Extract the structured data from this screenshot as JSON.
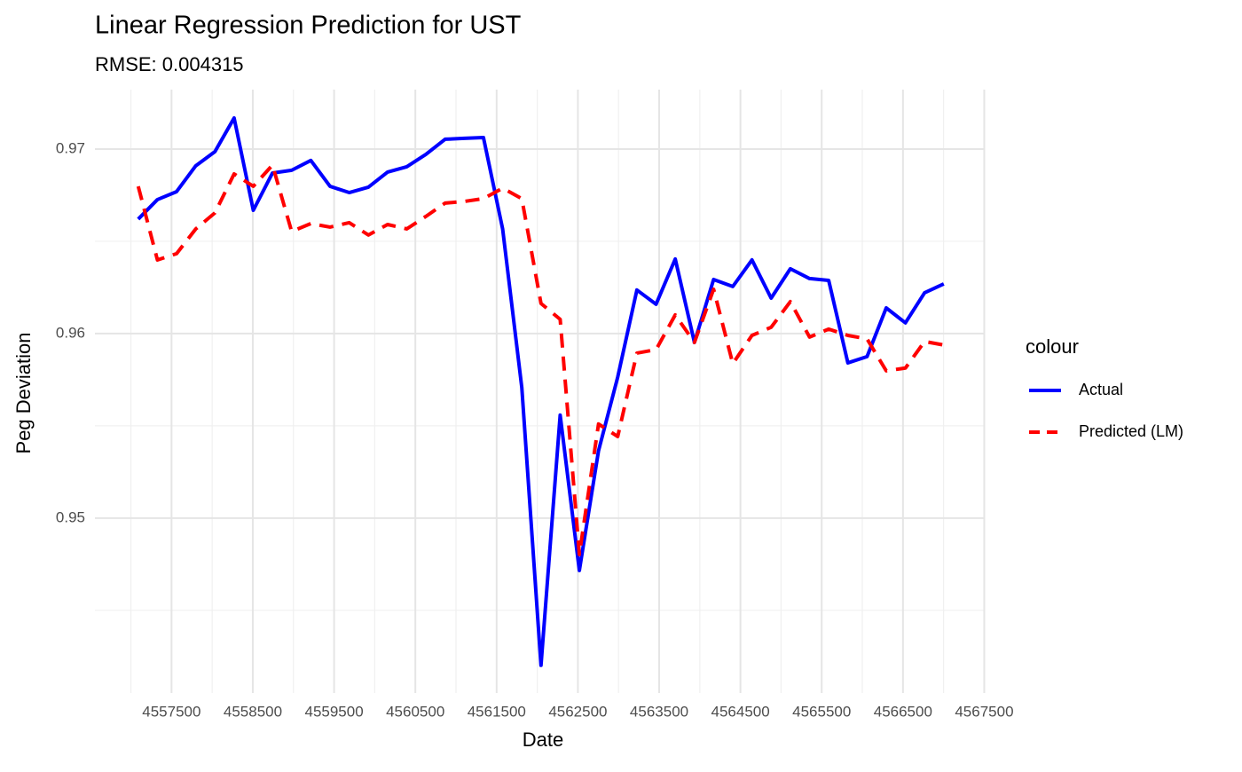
{
  "chart_data": {
    "type": "line",
    "title": "Linear Regression Prediction for UST",
    "subtitle": "RMSE: 0.004315",
    "x_label": "Date",
    "y_label": "Peg Deviation",
    "legend_title": "colour",
    "legend_position": "right",
    "grid": true,
    "x": [
      4557090,
      4557326,
      4557562,
      4557798,
      4558034,
      4558270,
      4558506,
      4558742,
      4558978,
      4559214,
      4559450,
      4559686,
      4559922,
      4560158,
      4560394,
      4560630,
      4560866,
      4561102,
      4561338,
      4561574,
      4561810,
      4562046,
      4562282,
      4562518,
      4562754,
      4562990,
      4563226,
      4563462,
      4563698,
      4563934,
      4564170,
      4564406,
      4564642,
      4564878,
      4565114,
      4565350,
      4565586,
      4565822,
      4566058,
      4566294,
      4566530,
      4566766,
      4567002
    ],
    "series": [
      {
        "name": "Actual",
        "color": "#0000ff",
        "dash": false,
        "values": [
          0.9662,
          0.96726,
          0.96769,
          0.96909,
          0.96986,
          0.97168,
          0.96668,
          0.9687,
          0.96885,
          0.96938,
          0.96798,
          0.96764,
          0.96793,
          0.96875,
          0.96904,
          0.96971,
          0.97053,
          0.97058,
          0.97062,
          0.96567,
          0.95707,
          0.94202,
          0.95558,
          0.94716,
          0.95365,
          0.95764,
          0.96236,
          0.96159,
          0.96404,
          0.95952,
          0.96293,
          0.96255,
          0.96399,
          0.96192,
          0.96351,
          0.96298,
          0.96288,
          0.95841,
          0.95875,
          0.96139,
          0.96058,
          0.96221,
          0.96269
        ]
      },
      {
        "name": "Predicted (LM)",
        "color": "#ff0000",
        "dash": true,
        "values": [
          0.96798,
          0.96399,
          0.96433,
          0.96567,
          0.96654,
          0.96865,
          0.96798,
          0.96913,
          0.96553,
          0.96596,
          0.96577,
          0.96601,
          0.96534,
          0.96591,
          0.96567,
          0.96635,
          0.96707,
          0.96716,
          0.96731,
          0.96788,
          0.96731,
          0.96163,
          0.96077,
          0.94803,
          0.9551,
          0.95442,
          0.95894,
          0.95913,
          0.96101,
          0.95952,
          0.9624,
          0.95837,
          0.9599,
          0.96034,
          0.96173,
          0.95981,
          0.96024,
          0.9599,
          0.95971,
          0.95798,
          0.95813,
          0.95957,
          0.95938
        ]
      }
    ],
    "xlim": [
      4556590,
      4567506
    ],
    "xticks": [
      4557500,
      4558500,
      4559500,
      4560500,
      4561500,
      4562500,
      4563500,
      4564500,
      4565500,
      4566500,
      4567500
    ],
    "x_minor_ticks": [
      4557000,
      4558000,
      4559000,
      4560000,
      4561000,
      4562000,
      4563000,
      4564000,
      4565000,
      4566000,
      4567000
    ],
    "ylim": [
      0.94052,
      0.97319
    ],
    "yticks": [
      0.95,
      0.96,
      0.97
    ],
    "y_minor_ticks": [
      0.945,
      0.955,
      0.965
    ]
  }
}
